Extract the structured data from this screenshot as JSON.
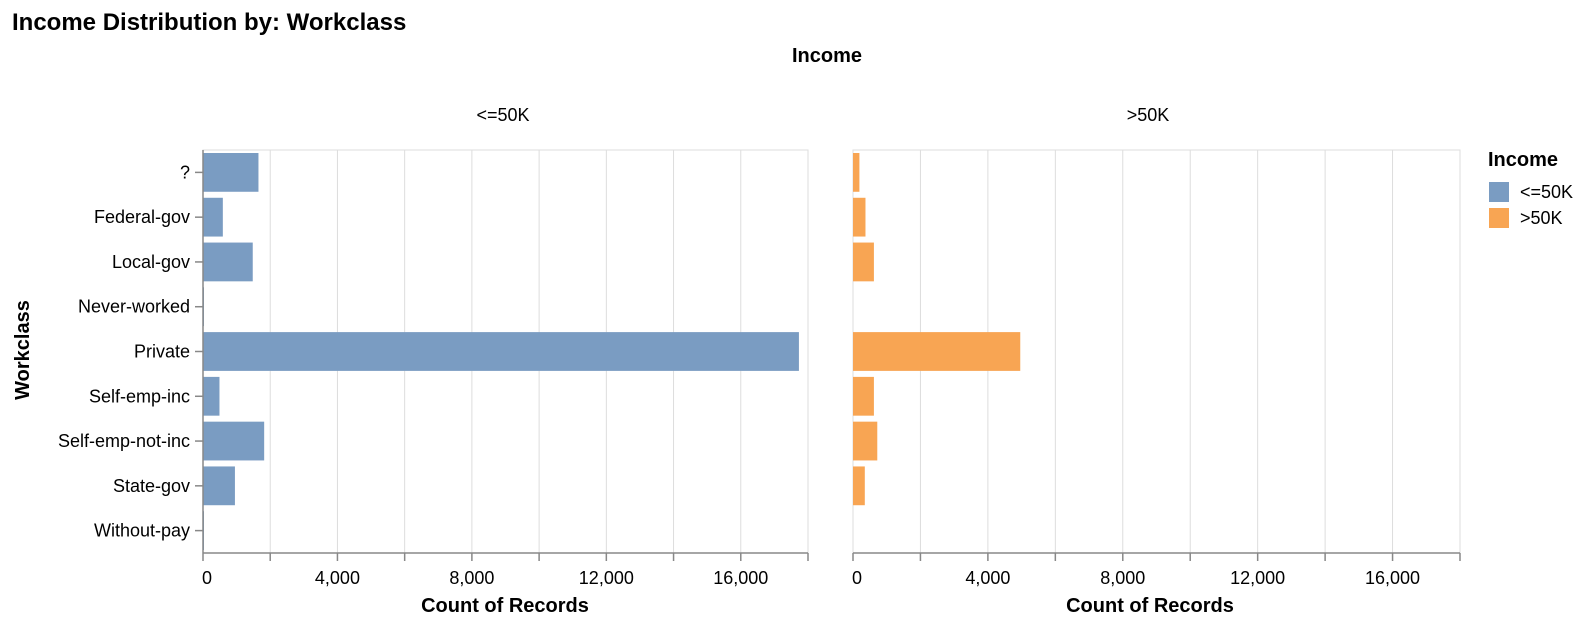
{
  "chart_data": {
    "type": "bar",
    "orientation": "horizontal",
    "title": "Income Distribution by: Workclass",
    "column_header_title": "Income",
    "ylabel": "Workclass",
    "xlabel": "Count of Records",
    "categories": [
      "?",
      "Federal-gov",
      "Local-gov",
      "Never-worked",
      "Private",
      "Self-emp-inc",
      "Self-emp-not-inc",
      "State-gov",
      "Without-pay"
    ],
    "xlim": [
      0,
      18000
    ],
    "x_ticks": [
      0,
      4000,
      8000,
      12000,
      16000
    ],
    "x_tick_labels": [
      "0",
      "4,000",
      "8,000",
      "12,000",
      "16,000"
    ],
    "grid": true,
    "legend": {
      "title": "Income",
      "position": "right",
      "entries": [
        {
          "label": "<=50K",
          "color": "#7a9cc2"
        },
        {
          "label": ">50K",
          "color": "#f8a553"
        }
      ]
    },
    "series": [
      {
        "name": "<=50K",
        "color": "#7a9cc2",
        "values": [
          1650,
          590,
          1480,
          7,
          17730,
          490,
          1820,
          950,
          14
        ]
      },
      {
        "name": ">50K",
        "color": "#f8a553",
        "values": [
          190,
          370,
          620,
          0,
          4960,
          620,
          720,
          350,
          0
        ]
      }
    ]
  }
}
